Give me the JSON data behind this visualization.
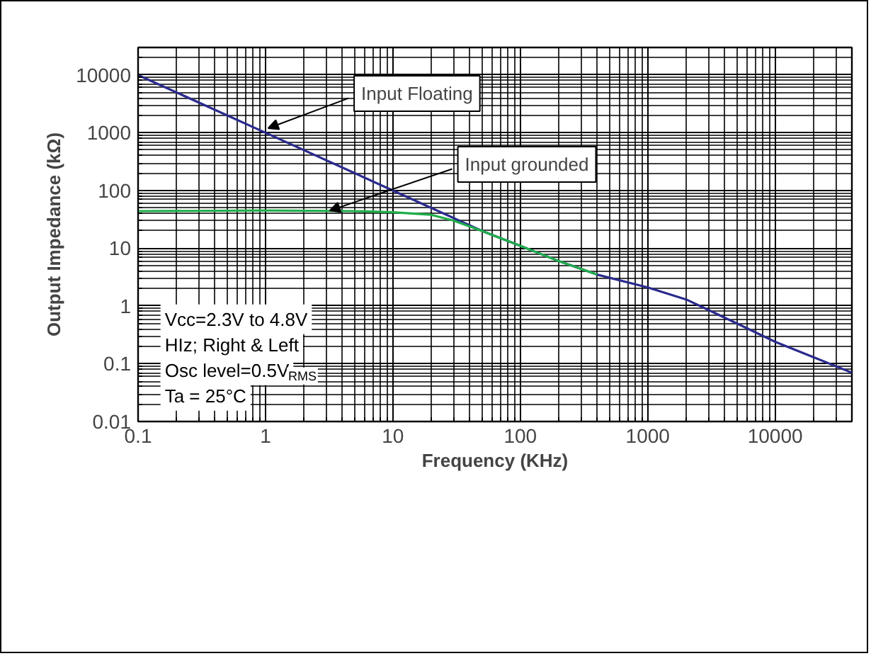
{
  "chart_data": {
    "type": "line",
    "xlabel": "Frequency (KHz)",
    "ylabel": "Output Impedance (kΩ)",
    "log": "xy",
    "grid": true,
    "xlim": [
      0.1,
      40000
    ],
    "ylim": [
      0.01,
      30000
    ],
    "xticks": [
      0.1,
      1,
      10,
      100,
      1000,
      10000
    ],
    "yticks": [
      0.01,
      0.1,
      1,
      10,
      100,
      1000,
      10000
    ],
    "series": [
      {
        "color": "#2a2a8e",
        "x": [
          0.1,
          1,
          10,
          20,
          50,
          100,
          200,
          400,
          1000,
          2000,
          5000,
          10000,
          20000,
          40000
        ],
        "values": [
          10000,
          1000,
          100,
          50,
          20,
          11,
          6,
          3.5,
          2.1,
          1.3,
          0.5,
          0.24,
          0.13,
          0.07
        ]
      },
      {
        "color": "#1fae4a",
        "x": [
          0.1,
          1,
          5,
          10,
          20,
          30,
          50,
          100,
          200,
          400
        ],
        "values": [
          44,
          45,
          44,
          42,
          38,
          30,
          20,
          11,
          6,
          3.5
        ]
      }
    ],
    "annotations": [
      {
        "text": "Input Floating",
        "x": 1.05,
        "y": 1200
      },
      {
        "text": "Input grounded",
        "x": 3.2,
        "y": 45
      },
      "Vcc=2.3V to 4.8V",
      "HIz; Right & Left",
      "Osc level=0.5V$_{RMS}$",
      "Ta = 25°C"
    ]
  }
}
